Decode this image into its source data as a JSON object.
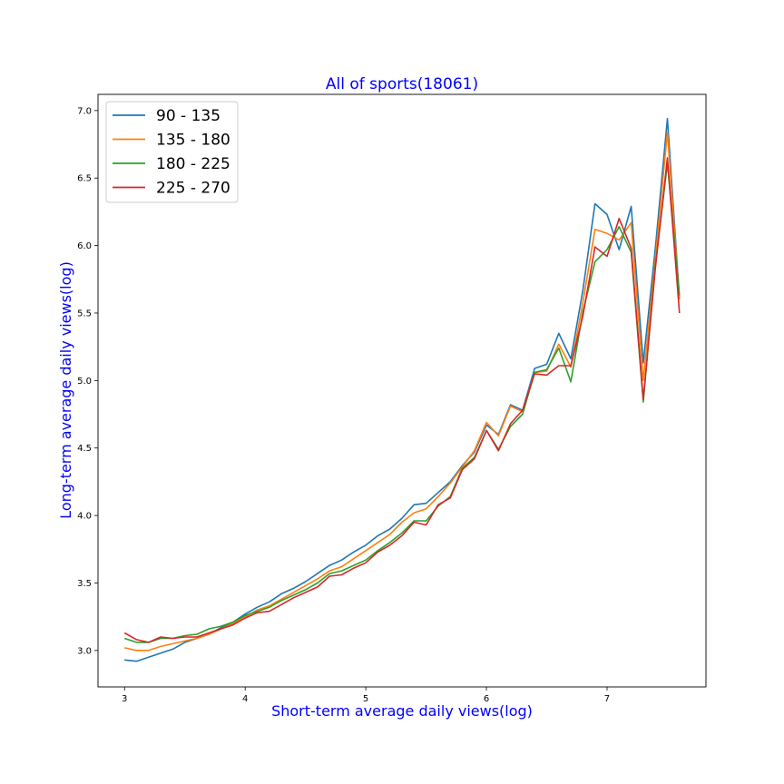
{
  "chart_data": {
    "type": "line",
    "title": "All of sports(18061)",
    "xlabel": "Short-term average daily views(log)",
    "ylabel": "Long-term average daily views(log)",
    "xlim": [
      2.78,
      7.82
    ],
    "ylim": [
      2.73,
      7.12
    ],
    "xticks": [
      3,
      4,
      5,
      6,
      7
    ],
    "xtick_labels": [
      "3",
      "4",
      "5",
      "6",
      "7"
    ],
    "yticks": [
      3.0,
      3.5,
      4.0,
      4.5,
      5.0,
      5.5,
      6.0,
      6.5,
      7.0
    ],
    "ytick_labels": [
      "3.0",
      "3.5",
      "4.0",
      "4.5",
      "5.0",
      "5.5",
      "6.0",
      "6.5",
      "7.0"
    ],
    "grid": false,
    "legend_position": "top-left",
    "x": [
      3.0,
      3.1,
      3.2,
      3.3,
      3.4,
      3.5,
      3.6,
      3.7,
      3.8,
      3.9,
      4.0,
      4.1,
      4.2,
      4.3,
      4.4,
      4.5,
      4.6,
      4.7,
      4.8,
      4.9,
      5.0,
      5.1,
      5.2,
      5.3,
      5.4,
      5.5,
      5.6,
      5.7,
      5.8,
      5.9,
      6.0,
      6.1,
      6.2,
      6.3,
      6.4,
      6.5,
      6.6,
      6.7,
      6.8,
      6.9,
      7.0,
      7.1,
      7.2,
      7.3,
      7.4,
      7.5,
      7.6
    ],
    "series": [
      {
        "name": "90 - 135",
        "color": "#1f77b4",
        "values": [
          2.93,
          2.92,
          2.95,
          2.98,
          3.01,
          3.06,
          3.09,
          3.12,
          3.17,
          3.21,
          3.27,
          3.32,
          3.36,
          3.42,
          3.46,
          3.51,
          3.57,
          3.63,
          3.67,
          3.73,
          3.78,
          3.85,
          3.9,
          3.98,
          4.08,
          4.09,
          4.17,
          4.25,
          4.37,
          4.47,
          4.67,
          4.6,
          4.82,
          4.78,
          5.09,
          5.12,
          5.35,
          5.16,
          5.67,
          6.31,
          6.23,
          5.97,
          6.29,
          5.13,
          5.98,
          6.94,
          5.61
        ]
      },
      {
        "name": "135 - 180",
        "color": "#ff7f0e",
        "values": [
          3.02,
          3.0,
          3.0,
          3.03,
          3.05,
          3.07,
          3.09,
          3.12,
          3.16,
          3.2,
          3.25,
          3.3,
          3.33,
          3.38,
          3.43,
          3.48,
          3.53,
          3.59,
          3.62,
          3.68,
          3.74,
          3.8,
          3.86,
          3.95,
          4.02,
          4.05,
          4.14,
          4.24,
          4.36,
          4.48,
          4.69,
          4.59,
          4.81,
          4.77,
          5.06,
          5.07,
          5.27,
          5.1,
          5.58,
          6.12,
          6.09,
          6.04,
          6.17,
          5.0,
          5.9,
          6.84,
          5.6
        ]
      },
      {
        "name": "180 - 225",
        "color": "#2ca02c",
        "values": [
          3.09,
          3.06,
          3.06,
          3.09,
          3.09,
          3.11,
          3.12,
          3.16,
          3.18,
          3.21,
          3.26,
          3.29,
          3.32,
          3.37,
          3.41,
          3.45,
          3.5,
          3.57,
          3.59,
          3.63,
          3.67,
          3.74,
          3.8,
          3.87,
          3.96,
          3.96,
          4.07,
          4.14,
          4.35,
          4.43,
          4.63,
          4.49,
          4.66,
          4.75,
          5.06,
          5.08,
          5.24,
          4.99,
          5.51,
          5.88,
          5.97,
          6.14,
          5.95,
          4.84,
          5.85,
          6.61,
          5.63
        ]
      },
      {
        "name": "225 - 270",
        "color": "#d62728",
        "values": [
          3.13,
          3.08,
          3.06,
          3.1,
          3.09,
          3.1,
          3.1,
          3.13,
          3.16,
          3.19,
          3.24,
          3.28,
          3.29,
          3.34,
          3.39,
          3.43,
          3.47,
          3.55,
          3.56,
          3.61,
          3.65,
          3.73,
          3.78,
          3.85,
          3.95,
          3.93,
          4.08,
          4.13,
          4.34,
          4.42,
          4.63,
          4.48,
          4.68,
          4.78,
          5.05,
          5.04,
          5.11,
          5.11,
          5.48,
          5.99,
          5.92,
          6.2,
          5.98,
          4.86,
          5.83,
          6.65,
          5.5
        ]
      }
    ]
  }
}
